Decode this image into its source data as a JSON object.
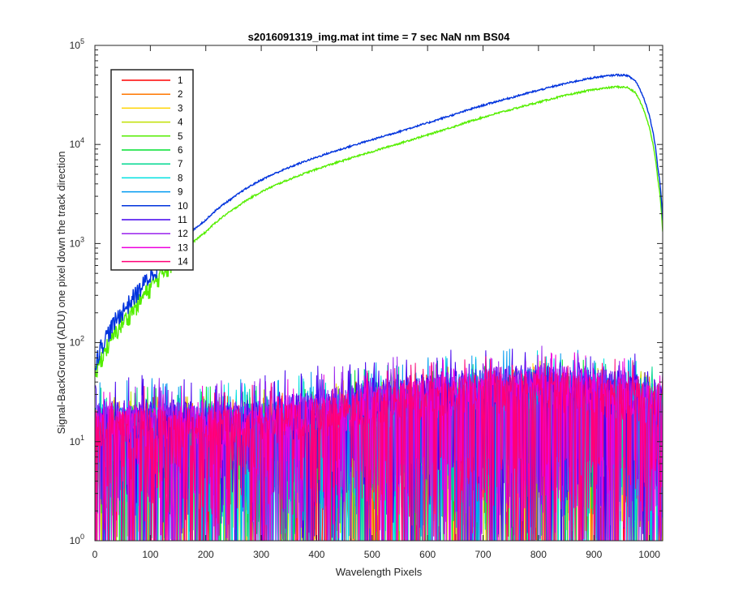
{
  "chart_data": {
    "type": "line",
    "title": "s2016091319_img.mat int time = 7 sec  NaN nm BS04",
    "xlabel": "Wavelength Pixels",
    "ylabel": "Signal-BackGround (ADU) one pixel down the track direction",
    "xlim": [
      0,
      1024
    ],
    "ylim": [
      1,
      100000
    ],
    "yscale": "log",
    "x_ticks": [
      "0",
      "100",
      "200",
      "300",
      "400",
      "500",
      "600",
      "700",
      "800",
      "900",
      "1000"
    ],
    "y_ticks": [
      {
        "base": "10",
        "exp": "0"
      },
      {
        "base": "10",
        "exp": "1"
      },
      {
        "base": "10",
        "exp": "2"
      },
      {
        "base": "10",
        "exp": "3"
      },
      {
        "base": "10",
        "exp": "4"
      },
      {
        "base": "10",
        "exp": "5"
      }
    ],
    "grid": false,
    "legend_position": "top-left",
    "signal_profile": {
      "x": [
        0,
        10,
        20,
        30,
        40,
        60,
        80,
        100,
        120,
        150,
        200,
        250,
        300,
        350,
        400,
        450,
        500,
        550,
        600,
        650,
        700,
        750,
        800,
        850,
        900,
        940,
        960,
        975,
        990,
        1005,
        1015,
        1024
      ],
      "y": [
        45,
        65,
        85,
        105,
        130,
        180,
        250,
        350,
        480,
        700,
        1300,
        2200,
        3300,
        4400,
        5600,
        6900,
        8400,
        10200,
        12400,
        15200,
        18700,
        22300,
        26500,
        31200,
        35700,
        38000,
        37500,
        33000,
        22000,
        11000,
        4500,
        1300
      ]
    },
    "noise_envelope": {
      "x": [
        0,
        100,
        200,
        300,
        400,
        500,
        600,
        700,
        800,
        900,
        1000,
        1024
      ],
      "peak": [
        40,
        42,
        40,
        42,
        52,
        62,
        70,
        80,
        85,
        80,
        66,
        55
      ],
      "typical": [
        16,
        16,
        16,
        16,
        20,
        25,
        30,
        35,
        38,
        35,
        28,
        24
      ]
    },
    "series": [
      {
        "name": "1",
        "color": "#ff0000",
        "kind": "noise",
        "gain": 0.7
      },
      {
        "name": "2",
        "color": "#ff7700",
        "kind": "noise",
        "gain": 0.72
      },
      {
        "name": "3",
        "color": "#ffd400",
        "kind": "noise",
        "gain": 0.75
      },
      {
        "name": "4",
        "color": "#c0e000",
        "kind": "noise",
        "gain": 0.8
      },
      {
        "name": "5",
        "color": "#55ee00",
        "kind": "signal",
        "scale": 1.0
      },
      {
        "name": "6",
        "color": "#00e030",
        "kind": "noise",
        "gain": 0.9
      },
      {
        "name": "7",
        "color": "#00d890",
        "kind": "noise",
        "gain": 0.95
      },
      {
        "name": "8",
        "color": "#00e0e0",
        "kind": "noise",
        "gain": 1.0
      },
      {
        "name": "9",
        "color": "#009af0",
        "kind": "noise",
        "gain": 1.05
      },
      {
        "name": "10",
        "color": "#0033dd",
        "kind": "signal",
        "scale": 1.32
      },
      {
        "name": "11",
        "color": "#4400ee",
        "kind": "noise",
        "gain": 1.15
      },
      {
        "name": "12",
        "color": "#9922ee",
        "kind": "noise",
        "gain": 1.1
      },
      {
        "name": "13",
        "color": "#ee00dd",
        "kind": "noise",
        "gain": 1.0
      },
      {
        "name": "14",
        "color": "#ff0077",
        "kind": "noise",
        "gain": 0.95
      }
    ]
  }
}
